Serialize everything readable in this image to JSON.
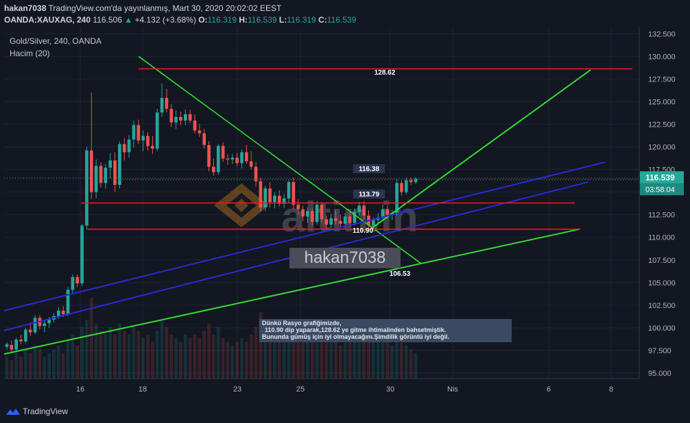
{
  "header": {
    "user": "hakan7038",
    "published": "TradingView.com'da yayınlanmış, Mart 30, 2020 20:02:02 EEST",
    "symbol": "OANDA:XAUXAG, 240",
    "last": "116.506",
    "change": "+4.132 (+3.68%)",
    "o_label": "O:",
    "o": "116.319",
    "h_label": "H:",
    "h": "116.539",
    "l_label": "L:",
    "l": "116.319",
    "c_label": "C:",
    "c": "116.539"
  },
  "legend": {
    "title": "Gold/Silver, 240, OANDA",
    "volume": "Hacim (20)"
  },
  "watermark": {
    "user": "hakan7038",
    "brand": "altin.in"
  },
  "note": {
    "line1": "Dünkü Rasyo grafiğimizde,",
    "line2": "110.90 dip yaparak,128.62 ye gitme ihtimalinden bahsetmiştik.",
    "line3": "Bununda gümüş için iyi olmayacağını.Şimdilik görüntü iyi değil."
  },
  "footer": {
    "brand": "TradingView"
  },
  "colors": {
    "up": "#26a69a",
    "down": "#ef5350",
    "grid": "#1f2433",
    "green": "#33dd33",
    "blue": "#2a2ad6",
    "red": "#e01f1f"
  },
  "chart_data": {
    "type": "candlestick",
    "title": "Gold/Silver, 240, OANDA",
    "ylim": [
      94.5,
      132.5
    ],
    "y_ticks": [
      "95.000",
      "97.500",
      "100.000",
      "102.500",
      "105.000",
      "107.500",
      "110.000",
      "112.500",
      "115.000",
      "117.500",
      "120.000",
      "122.500",
      "125.000",
      "127.500",
      "130.000",
      "132.500"
    ],
    "x_ticks": [
      "16",
      "18",
      "23",
      "25",
      "30",
      "Nis",
      "6",
      "8"
    ],
    "price_label": "116.539",
    "countdown": "03:58:04",
    "levels": [
      {
        "label": "128.62",
        "value": 128.62
      },
      {
        "label": "116.38",
        "value": 116.38
      },
      {
        "label": "113.79",
        "value": 113.79
      },
      {
        "label": "110.90",
        "value": 110.9
      },
      {
        "label": "106.53",
        "value": 106.53
      }
    ],
    "candles": [
      [
        97.9,
        98.4,
        97.6,
        98.2
      ],
      [
        98.1,
        98.6,
        97.3,
        97.6
      ],
      [
        97.6,
        98.9,
        97.4,
        98.7
      ],
      [
        98.7,
        99.2,
        98.2,
        98.5
      ],
      [
        98.5,
        100.0,
        98.3,
        99.8
      ],
      [
        99.8,
        100.6,
        99.1,
        99.5
      ],
      [
        99.5,
        101.4,
        99.3,
        101.1
      ],
      [
        101.1,
        101.4,
        99.8,
        100.2
      ],
      [
        100.2,
        100.8,
        99.5,
        100.5
      ],
      [
        100.5,
        101.2,
        100.0,
        100.9
      ],
      [
        100.9,
        101.6,
        100.6,
        101.3
      ],
      [
        101.3,
        102.3,
        101.0,
        101.9
      ],
      [
        101.9,
        102.4,
        101.2,
        101.5
      ],
      [
        101.5,
        104.5,
        101.3,
        104.2
      ],
      [
        104.2,
        105.9,
        103.8,
        105.6
      ],
      [
        105.6,
        105.9,
        104.5,
        104.9
      ],
      [
        104.9,
        111.5,
        104.6,
        111.3
      ],
      [
        111.3,
        120.0,
        110.9,
        119.6
      ],
      [
        119.6,
        126.0,
        114.2,
        115.0
      ],
      [
        115.0,
        118.6,
        114.3,
        117.9
      ],
      [
        117.9,
        118.3,
        115.5,
        116.0
      ],
      [
        116.0,
        118.1,
        115.4,
        117.7
      ],
      [
        117.7,
        119.3,
        116.5,
        118.5
      ],
      [
        118.5,
        119.4,
        115.0,
        115.8
      ],
      [
        115.8,
        120.6,
        115.4,
        120.3
      ],
      [
        120.3,
        121.0,
        118.5,
        119.4
      ],
      [
        119.4,
        121.3,
        118.8,
        120.8
      ],
      [
        120.8,
        122.9,
        119.9,
        122.4
      ],
      [
        122.4,
        123.0,
        120.3,
        120.7
      ],
      [
        120.7,
        121.8,
        119.5,
        121.2
      ],
      [
        121.2,
        121.6,
        119.6,
        120.1
      ],
      [
        120.1,
        121.2,
        119.2,
        119.8
      ],
      [
        119.8,
        124.2,
        119.5,
        123.8
      ],
      [
        123.8,
        127.0,
        123.3,
        125.4
      ],
      [
        125.4,
        126.4,
        123.8,
        124.2
      ],
      [
        124.2,
        124.7,
        122.2,
        122.7
      ],
      [
        122.7,
        124.0,
        122.0,
        123.3
      ],
      [
        123.3,
        123.9,
        122.4,
        122.9
      ],
      [
        122.9,
        124.1,
        122.4,
        123.6
      ],
      [
        123.6,
        124.1,
        122.6,
        122.9
      ],
      [
        122.9,
        123.6,
        121.5,
        121.8
      ],
      [
        121.8,
        122.5,
        121.1,
        121.5
      ],
      [
        121.5,
        122.0,
        119.8,
        120.2
      ],
      [
        120.2,
        120.6,
        117.3,
        117.8
      ],
      [
        117.8,
        118.7,
        116.8,
        117.2
      ],
      [
        117.2,
        120.3,
        116.9,
        120.1
      ],
      [
        120.1,
        120.5,
        118.3,
        118.7
      ],
      [
        118.7,
        119.2,
        118.0,
        118.6
      ],
      [
        118.6,
        119.2,
        118.1,
        118.8
      ],
      [
        118.8,
        119.3,
        117.9,
        118.2
      ],
      [
        118.2,
        119.7,
        117.6,
        119.4
      ],
      [
        119.4,
        120.2,
        118.1,
        118.4
      ],
      [
        118.4,
        119.5,
        117.5,
        117.8
      ],
      [
        117.8,
        118.3,
        115.6,
        116.2
      ],
      [
        116.2,
        116.6,
        112.8,
        113.3
      ],
      [
        113.3,
        115.7,
        112.9,
        115.4
      ],
      [
        115.4,
        116.1,
        113.3,
        113.9
      ],
      [
        113.9,
        115.0,
        113.2,
        114.6
      ],
      [
        114.6,
        115.2,
        113.4,
        113.7
      ],
      [
        113.7,
        114.8,
        113.2,
        114.3
      ],
      [
        114.3,
        116.3,
        113.8,
        116.1
      ],
      [
        116.1,
        116.6,
        113.1,
        113.6
      ],
      [
        113.6,
        114.2,
        112.5,
        113.1
      ],
      [
        113.1,
        113.5,
        111.8,
        112.3
      ],
      [
        112.3,
        113.3,
        111.6,
        112.9
      ],
      [
        112.9,
        113.2,
        111.3,
        111.7
      ],
      [
        111.7,
        114.0,
        111.4,
        113.6
      ],
      [
        113.6,
        113.9,
        111.6,
        112.0
      ],
      [
        112.0,
        112.4,
        110.9,
        111.4
      ],
      [
        111.4,
        112.6,
        111.0,
        112.1
      ],
      [
        112.1,
        113.0,
        111.4,
        111.8
      ],
      [
        111.8,
        112.5,
        111.1,
        111.5
      ],
      [
        111.5,
        112.7,
        110.9,
        112.3
      ],
      [
        112.3,
        112.9,
        111.2,
        111.6
      ],
      [
        111.6,
        113.2,
        111.3,
        112.8
      ],
      [
        112.8,
        113.9,
        112.3,
        113.5
      ],
      [
        113.5,
        114.0,
        112.0,
        112.4
      ],
      [
        112.4,
        113.0,
        111.0,
        111.3
      ],
      [
        111.3,
        112.2,
        110.9,
        111.9
      ],
      [
        111.9,
        112.7,
        111.4,
        112.2
      ],
      [
        112.2,
        113.6,
        111.8,
        113.1
      ],
      [
        113.1,
        113.5,
        112.0,
        112.5
      ],
      [
        112.5,
        113.0,
        111.9,
        112.7
      ],
      [
        112.7,
        116.4,
        112.4,
        116.0
      ],
      [
        116.0,
        116.3,
        114.6,
        115.0
      ],
      [
        115.0,
        116.6,
        114.7,
        116.3
      ],
      [
        116.3,
        116.6,
        115.8,
        116.1
      ],
      [
        116.1,
        116.6,
        115.9,
        116.5
      ]
    ],
    "volumes": [
      6,
      5,
      7,
      6,
      8,
      7,
      9,
      8,
      6,
      7,
      8,
      9,
      7,
      10,
      12,
      9,
      14,
      16,
      22,
      15,
      13,
      12,
      14,
      12,
      15,
      13,
      12,
      14,
      13,
      11,
      12,
      10,
      13,
      16,
      14,
      12,
      11,
      10,
      12,
      11,
      12,
      11,
      13,
      15,
      12,
      14,
      11,
      10,
      9,
      10,
      11,
      10,
      12,
      14,
      18,
      15,
      13,
      12,
      11,
      12,
      14,
      15,
      13,
      12,
      11,
      13,
      12,
      11,
      10,
      11,
      10,
      9,
      10,
      11,
      12,
      13,
      14,
      12,
      11,
      10,
      11,
      10,
      9,
      13,
      10,
      9,
      8,
      7
    ]
  }
}
